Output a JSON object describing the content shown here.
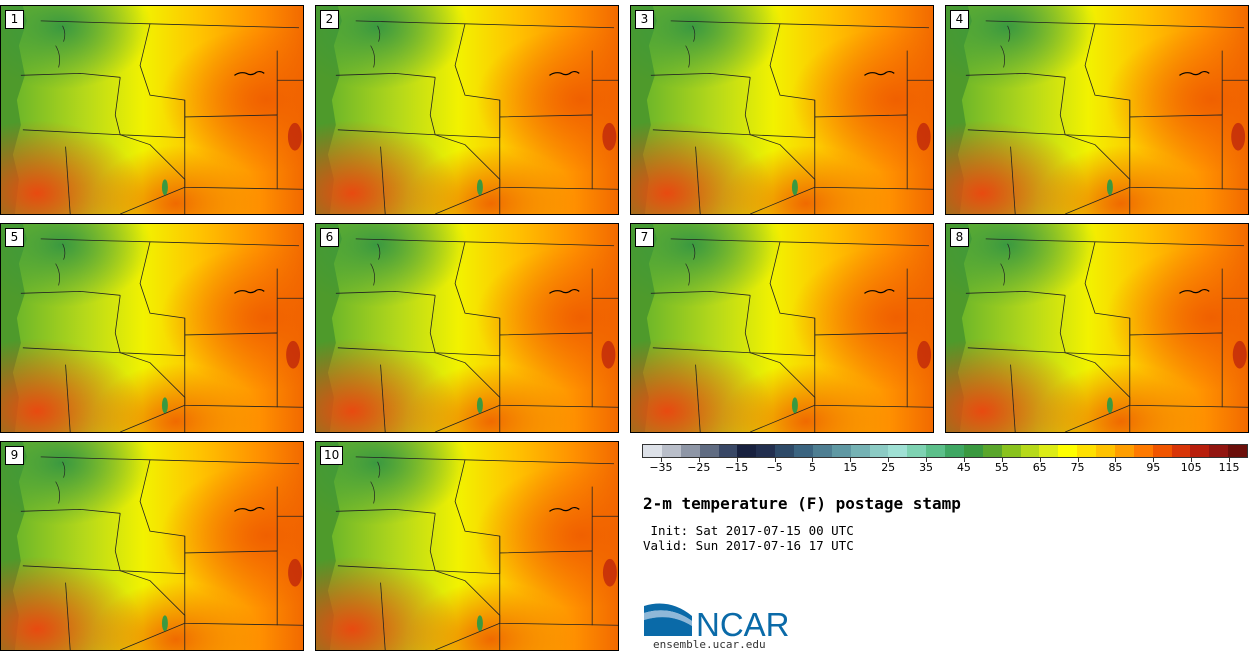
{
  "panels": [
    {
      "label": "1"
    },
    {
      "label": "2"
    },
    {
      "label": "3"
    },
    {
      "label": "4"
    },
    {
      "label": "5"
    },
    {
      "label": "6"
    },
    {
      "label": "7"
    },
    {
      "label": "8"
    },
    {
      "label": "9"
    },
    {
      "label": "10"
    }
  ],
  "colorbar": {
    "colors": [
      "#dde1e8",
      "#b9bec9",
      "#8e96a6",
      "#606c82",
      "#394866",
      "#18213f",
      "#222f4f",
      "#2e4a68",
      "#3b6480",
      "#4e7e92",
      "#5f98a3",
      "#75b2b4",
      "#8ccbc4",
      "#9fe0d4",
      "#7ed2b2",
      "#5cbf8a",
      "#3fa763",
      "#3a9940",
      "#5aa62c",
      "#89c21e",
      "#b6d91a",
      "#dcec16",
      "#ffff00",
      "#ffe000",
      "#ffc200",
      "#ff9e00",
      "#ff7a00",
      "#f05500",
      "#d83508",
      "#b81e0c",
      "#921510",
      "#6b0e0a"
    ],
    "tick_labels": [
      "−35",
      "−25",
      "−15",
      "−5",
      "5",
      "15",
      "25",
      "35",
      "45",
      "55",
      "65",
      "75",
      "85",
      "95",
      "105",
      "115"
    ]
  },
  "title": "2-m temperature (F) postage stamp",
  "init_line": "Init: Sat 2017-07-15 00 UTC",
  "valid_line": "Valid: Sun 2017-07-16 17 UTC",
  "logo": {
    "text": "NCAR",
    "url": "ensemble.ucar.edu",
    "brand_color": "#0a6aa8"
  }
}
